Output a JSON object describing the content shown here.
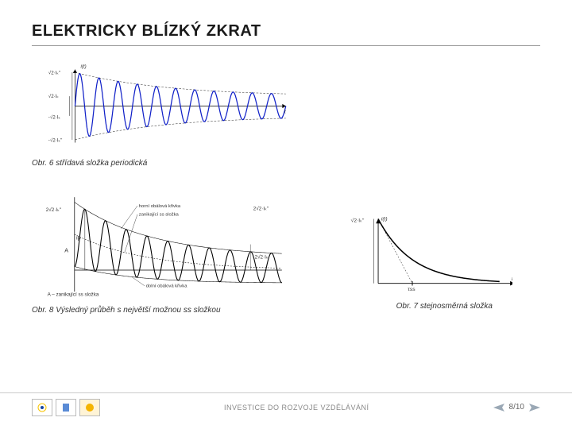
{
  "title": "ELEKTRICKY BLÍZKÝ ZKRAT",
  "figures": {
    "fig1": {
      "caption": "Obr. 6 střídavá složka periodická",
      "type": "damped-sine-envelope",
      "line_color": "#1020c8",
      "envelope_color": "#333333",
      "axis_color": "#000000",
      "background": "#ffffff",
      "x_range": [
        0,
        300
      ],
      "y_range": [
        -50,
        50
      ],
      "initial_amplitude": 48,
      "final_amplitude": 14,
      "decay_tau": 130,
      "frequency_cycles": 11,
      "line_width": 1.4,
      "y_left_labels": [
        "√2·Iₖ\"",
        "√2·Iₖ",
        "-√2·Iₖ",
        "-√2·Iₖ\""
      ],
      "x_label": "t",
      "y_label_top": "i(t)"
    },
    "fig2": {
      "caption": "Obr. 7 stejnosměrná složka",
      "type": "exponential-decay",
      "line_color": "#000000",
      "axis_color": "#000000",
      "background": "#ffffff",
      "x_range": [
        0,
        180
      ],
      "y_range": [
        0,
        90
      ],
      "initial_value": 85,
      "decay_tau": 45,
      "line_width": 1.6,
      "y_label": "√2·Iₖ\"",
      "x_label": "t",
      "top_label": "i(t)",
      "tau_marker": "τss"
    },
    "fig3": {
      "caption": "Obr. 8  Výsledný průběh s největší možnou ss složkou",
      "type": "asymmetric-damped-sine",
      "line_color": "#000000",
      "envelope_color": "#000000",
      "axis_color": "#000000",
      "background": "#ffffff",
      "x_range": [
        0,
        290
      ],
      "y_range": [
        -30,
        95
      ],
      "dc_initial": 50,
      "dc_tau": 100,
      "ac_initial_amplitude": 45,
      "ac_final_amplitude": 18,
      "ac_tau": 120,
      "frequency_cycles": 10,
      "line_width": 1.2,
      "annotations": {
        "ip_label": "ip",
        "A_label": "A",
        "top_env": "horní obálová křivka",
        "dc_env": "zanikající ss složka",
        "bot_env": "dolní obálová křivka",
        "right1": "2√2·Iₖ\"",
        "right2": "2√2·Iₖ",
        "footnote": "A – zanikající ss složka"
      }
    }
  },
  "footer": {
    "text": "INVESTICE DO ROZVOJE VZDĚLÁVÁNÍ",
    "page": "8/10",
    "arrow_color": "#9aa8b5"
  },
  "logos": [
    "ESF",
    "MŠMT",
    "OP"
  ]
}
